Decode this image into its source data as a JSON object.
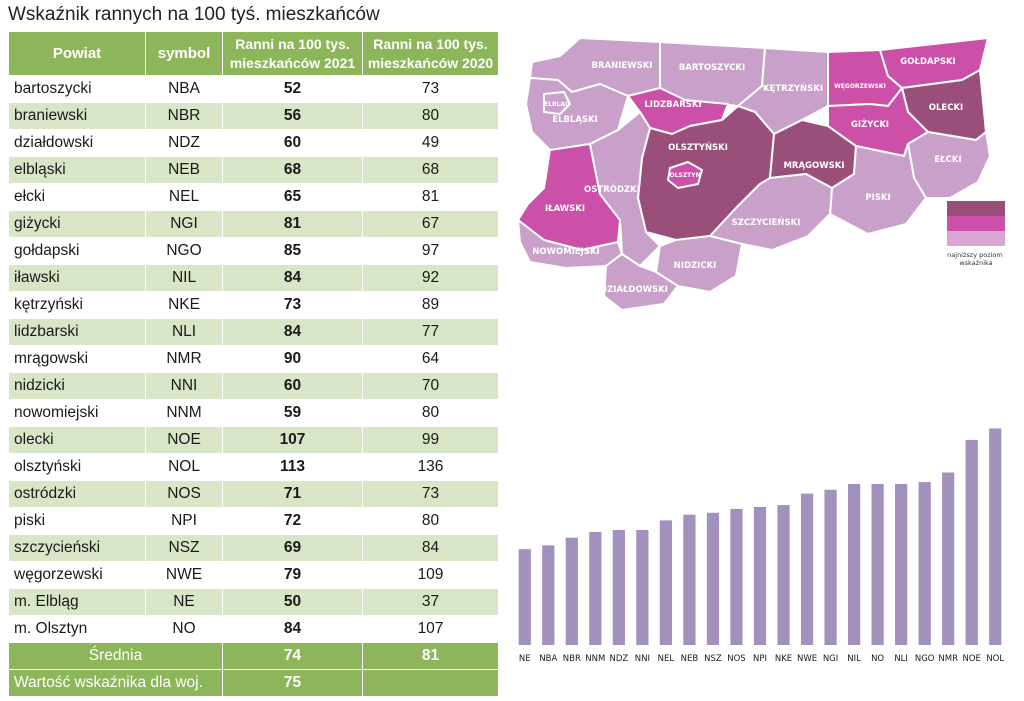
{
  "title": "Wskaźnik rannych na 100 tyś. mieszkańców",
  "table": {
    "headers": {
      "powiat": "Powiat",
      "symbol": "symbol",
      "v2021_line1": "Ranni na 100 tys.",
      "v2021_line2": "mieszkańców 2021",
      "v2020_line1": "Ranni na 100 tys.",
      "v2020_line2": "mieszkańców 2020"
    },
    "rows": [
      {
        "powiat": "bartoszycki",
        "symbol": "NBA",
        "v2021": "52",
        "v2020": "73"
      },
      {
        "powiat": "braniewski",
        "symbol": "NBR",
        "v2021": "56",
        "v2020": "80"
      },
      {
        "powiat": "działdowski",
        "symbol": "NDZ",
        "v2021": "60",
        "v2020": "49"
      },
      {
        "powiat": "elbląski",
        "symbol": "NEB",
        "v2021": "68",
        "v2020": "68"
      },
      {
        "powiat": "ełcki",
        "symbol": "NEL",
        "v2021": "65",
        "v2020": "81"
      },
      {
        "powiat": "giżycki",
        "symbol": "NGI",
        "v2021": "81",
        "v2020": "67"
      },
      {
        "powiat": "gołdapski",
        "symbol": "NGO",
        "v2021": "85",
        "v2020": "97"
      },
      {
        "powiat": "iławski",
        "symbol": "NIL",
        "v2021": "84",
        "v2020": "92"
      },
      {
        "powiat": "kętrzyński",
        "symbol": "NKE",
        "v2021": "73",
        "v2020": "89"
      },
      {
        "powiat": "lidzbarski",
        "symbol": "NLI",
        "v2021": "84",
        "v2020": "77"
      },
      {
        "powiat": "mrągowski",
        "symbol": "NMR",
        "v2021": "90",
        "v2020": "64"
      },
      {
        "powiat": "nidzicki",
        "symbol": "NNI",
        "v2021": "60",
        "v2020": "70"
      },
      {
        "powiat": "nowomiejski",
        "symbol": "NNM",
        "v2021": "59",
        "v2020": "80"
      },
      {
        "powiat": "olecki",
        "symbol": "NOE",
        "v2021": "107",
        "v2020": "99"
      },
      {
        "powiat": "olsztyński",
        "symbol": "NOL",
        "v2021": "113",
        "v2020": "136"
      },
      {
        "powiat": "ostródzki",
        "symbol": "NOS",
        "v2021": "71",
        "v2020": "73"
      },
      {
        "powiat": "piski",
        "symbol": "NPI",
        "v2021": "72",
        "v2020": "80"
      },
      {
        "powiat": "szczycieński",
        "symbol": "NSZ",
        "v2021": "69",
        "v2020": "84"
      },
      {
        "powiat": "węgorzewski",
        "symbol": "NWE",
        "v2021": "79",
        "v2020": "109"
      },
      {
        "powiat": "m. Elbląg",
        "symbol": "NE",
        "v2021": "50",
        "v2020": "37"
      },
      {
        "powiat": "m. Olsztyn",
        "symbol": "NO",
        "v2021": "84",
        "v2020": "107"
      }
    ],
    "average": {
      "label": "Średnia",
      "v2021": "74",
      "v2020": "81"
    },
    "voivodeship": {
      "label": "Wartość wskaźnika dla woj.",
      "v2021": "75"
    }
  },
  "map": {
    "colors": {
      "level1": "#9a4f7a",
      "level2": "#cc4fa8",
      "level3": "#d8a6d0",
      "level4": "#c9a0c9"
    },
    "regions": [
      {
        "id": "braniewski",
        "label": "BRANIEWSKI",
        "level": 4
      },
      {
        "id": "bartoszycki",
        "label": "BARTOSZYCKI",
        "level": 4
      },
      {
        "id": "ketrzynski",
        "label": "KĘTRZYŃSKI",
        "level": 4
      },
      {
        "id": "wegorzewski",
        "label": "WĘGORZEWSKI",
        "level": 2
      },
      {
        "id": "goldapski",
        "label": "GOŁDAPSKI",
        "level": 2
      },
      {
        "id": "olecki",
        "label": "OLECKI",
        "level": 1
      },
      {
        "id": "elblaski",
        "label": "ELBLĄSKI",
        "level": 4
      },
      {
        "id": "elblag",
        "label": "ELBLĄG",
        "level": 4
      },
      {
        "id": "lidzbarski",
        "label": "LIDZBARSKI",
        "level": 2
      },
      {
        "id": "olsztynski",
        "label": "OLSZTYŃSKI",
        "level": 1
      },
      {
        "id": "olsztyn",
        "label": "OLSZTYN",
        "level": 2
      },
      {
        "id": "mragowski",
        "label": "MRĄGOWSKI",
        "level": 1
      },
      {
        "id": "gizycki",
        "label": "GIŻYCKI",
        "level": 2
      },
      {
        "id": "elcki",
        "label": "EŁCKI",
        "level": 4
      },
      {
        "id": "ilawski",
        "label": "IŁAWSKI",
        "level": 2
      },
      {
        "id": "ostrodzki",
        "label": "OSTRÓDZKI",
        "level": 4
      },
      {
        "id": "piski",
        "label": "PISKI",
        "level": 4
      },
      {
        "id": "szczycienski",
        "label": "SZCZYCIEŃSKI",
        "level": 4
      },
      {
        "id": "nowomiejski",
        "label": "NOWOMIEJSKI",
        "level": 4
      },
      {
        "id": "nidzicki",
        "label": "NIDZICKI",
        "level": 4
      },
      {
        "id": "dzialdowski",
        "label": "DZIAŁDOWSKI",
        "level": 4
      }
    ],
    "legend": {
      "caption_line1": "najniższy poziom",
      "caption_line2": "wskaźnika",
      "swatch_colors": [
        "#9a4f7a",
        "#cc4fa8",
        "#d8a6d0"
      ]
    }
  },
  "chart_data": {
    "type": "bar",
    "categories": [
      "NE",
      "NBA",
      "NBR",
      "NNM",
      "NDZ",
      "NNI",
      "NEL",
      "NEB",
      "NSZ",
      "NOS",
      "NPI",
      "NKE",
      "NWE",
      "NGI",
      "NIL",
      "NO",
      "NLI",
      "NGO",
      "NMR",
      "NOE",
      "NOL"
    ],
    "values": [
      50,
      52,
      56,
      59,
      60,
      60,
      65,
      68,
      69,
      71,
      72,
      73,
      79,
      81,
      84,
      84,
      84,
      85,
      90,
      107,
      113
    ],
    "ylim": [
      0,
      120
    ],
    "grid": false,
    "legend": "none",
    "bar_color": "#a391bd"
  }
}
